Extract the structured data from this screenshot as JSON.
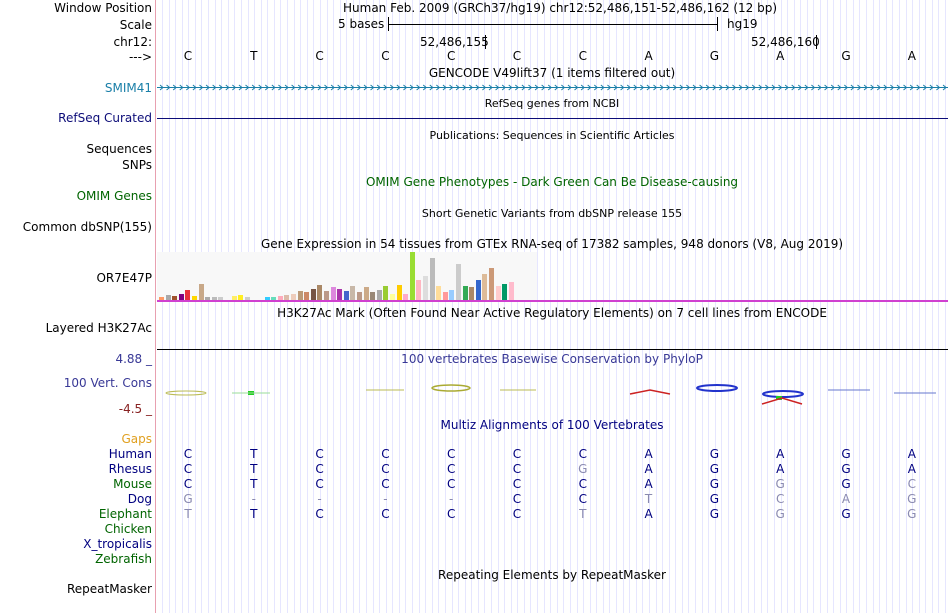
{
  "header": {
    "window_position_label": "Window Position",
    "window_position_value": "Human Feb. 2009 (GRCh37/hg19)   chr12:52,486,151-52,486,162 (12 bp)",
    "scale_label": "Scale",
    "scale_left": "5 bases",
    "scale_right": "hg19",
    "chrom_label": "chr12:",
    "coord1": "52,486,155",
    "coord2": "52,486,160",
    "strand_label": "--->"
  },
  "bases": [
    "C",
    "T",
    "C",
    "C",
    "C",
    "C",
    "C",
    "A",
    "G",
    "A",
    "G",
    "A"
  ],
  "tracks": {
    "gencode_title": "GENCODE V49lift37 (1 items filtered out)",
    "gencode_item": "SMIM41",
    "refseq_title": "RefSeq genes from NCBI",
    "refseq_label": "RefSeq Curated",
    "publications_title": "Publications: Sequences in Scientific Articles",
    "sequences_label": "Sequences",
    "snps_label": "SNPs",
    "omim_title": "OMIM Gene Phenotypes - Dark Green Can Be Disease-causing",
    "omim_label": "OMIM Genes",
    "dbsnp_title": "Short Genetic Variants from dbSNP release 155",
    "dbsnp_label": "Common dbSNP(155)",
    "gtex_title": "Gene Expression in 54 tissues from GTEx RNA-seq of 17382 samples, 948 donors (V8, Aug 2019)",
    "gtex_label": "OR7E47P",
    "h3k27ac_title": "H3K27Ac Mark (Often Found Near Active Regulatory Elements) on 7 cell lines from ENCODE",
    "h3k27ac_label": "Layered H3K27Ac",
    "phylop_title": "100 vertebrates Basewise Conservation by PhyloP",
    "phylop_label": "100 Vert. Cons",
    "phylop_max": "4.88 _",
    "phylop_min": "-4.5 _",
    "multiz_title": "Multiz Alignments of 100 Vertebrates",
    "gaps_label": "Gaps",
    "repeat_title": "Repeating Elements by RepeatMasker",
    "repeat_label": "RepeatMasker"
  },
  "gtex_levels": [
    3,
    5,
    4,
    6,
    10,
    4,
    16,
    3,
    3,
    3,
    0,
    4,
    5,
    3,
    0,
    0,
    3,
    3,
    4,
    5,
    6,
    9,
    8,
    11,
    15,
    9,
    13,
    11,
    9,
    14,
    8,
    13,
    8,
    10,
    14,
    6,
    15,
    6,
    48,
    20,
    24,
    42,
    14,
    8,
    10,
    36,
    14,
    13,
    20,
    26,
    32,
    14,
    16,
    18
  ],
  "gtex_colors": [
    "#ff9966",
    "#a9a9a9",
    "#a0522d",
    "#800080",
    "#e8303a",
    "#ffd700",
    "#c8a888",
    "#aaaaaa",
    "#bbbbbb",
    "#cccccc",
    "#dddddd",
    "#ffee66",
    "#ffee22",
    "#cccccc",
    "#dddddd",
    "#aaaaaa",
    "#33ccff",
    "#66ddbb",
    "#ffaabb",
    "#ddbbaa",
    "#eeccbb",
    "#bb9977",
    "#cc8866",
    "#775544",
    "#aa8866",
    "#bb9988",
    "#dd88dd",
    "#aa33aa",
    "#4466cc",
    "#c8b8a8",
    "#bb9988",
    "#ccaa88",
    "#998877",
    "#aaaaaa",
    "#99cc33",
    "#ffff99",
    "#ffcc00",
    "#ffaacc",
    "#99dd33",
    "#ffb6c1",
    "#dddddd",
    "#bbbbbb",
    "#ffdd99",
    "#ff9999",
    "#99ccff",
    "#cccccc",
    "#33aa55",
    "#aa8866",
    "#3366cc",
    "#ddbb99",
    "#cc9977",
    "#ffcccc",
    "#009966",
    "#ffbbcc"
  ],
  "multiz": [
    {
      "species": "Human",
      "color": "#000080",
      "bases": [
        "C",
        "T",
        "C",
        "C",
        "C",
        "C",
        "C",
        "A",
        "G",
        "A",
        "G",
        "A"
      ],
      "dim": [
        0,
        0,
        0,
        0,
        0,
        0,
        0,
        0,
        0,
        0,
        0,
        0
      ]
    },
    {
      "species": "Rhesus",
      "color": "#000080",
      "bases": [
        "C",
        "T",
        "C",
        "C",
        "C",
        "C",
        "G",
        "A",
        "G",
        "A",
        "G",
        "A"
      ],
      "dim": [
        0,
        0,
        0,
        0,
        0,
        0,
        1,
        0,
        0,
        0,
        0,
        0
      ]
    },
    {
      "species": "Mouse",
      "color": "#006400",
      "bases": [
        "C",
        "T",
        "C",
        "C",
        "C",
        "C",
        "C",
        "A",
        "G",
        "G",
        "G",
        "C"
      ],
      "dim": [
        0,
        0,
        0,
        0,
        0,
        0,
        0,
        0,
        0,
        1,
        0,
        1
      ]
    },
    {
      "species": "Dog",
      "color": "#000080",
      "bases": [
        "G",
        "-",
        "-",
        "-",
        "-",
        "C",
        "C",
        "T",
        "G",
        "C",
        "A",
        "G"
      ],
      "dim": [
        1,
        1,
        1,
        1,
        1,
        0,
        0,
        1,
        0,
        1,
        1,
        1
      ]
    },
    {
      "species": "Elephant",
      "color": "#006400",
      "bases": [
        "T",
        "T",
        "C",
        "C",
        "C",
        "C",
        "T",
        "A",
        "G",
        "G",
        "G",
        "G"
      ],
      "dim": [
        1,
        0,
        0,
        0,
        0,
        0,
        1,
        0,
        0,
        1,
        0,
        1
      ]
    },
    {
      "species": "Chicken",
      "color": "#006400",
      "bases": [
        "",
        "",
        "",
        "",
        "",
        "",
        "",
        "",
        "",
        "",
        "",
        ""
      ],
      "dim": [
        0,
        0,
        0,
        0,
        0,
        0,
        0,
        0,
        0,
        0,
        0,
        0
      ]
    },
    {
      "species": "X_tropicalis",
      "color": "#000080",
      "bases": [
        "",
        "",
        "",
        "",
        "",
        "",
        "",
        "",
        "",
        "",
        "",
        ""
      ],
      "dim": [
        0,
        0,
        0,
        0,
        0,
        0,
        0,
        0,
        0,
        0,
        0,
        0
      ]
    },
    {
      "species": "Zebrafish",
      "color": "#006400",
      "bases": [
        "",
        "",
        "",
        "",
        "",
        "",
        "",
        "",
        "",
        "",
        "",
        ""
      ],
      "dim": [
        0,
        0,
        0,
        0,
        0,
        0,
        0,
        0,
        0,
        0,
        0,
        0
      ]
    }
  ],
  "colors": {
    "gencode": "#1a7fa8",
    "refseq": "#0c0c78",
    "omim": "#006400",
    "phylop": "#383896",
    "phylop_min": "#882222",
    "gaps": "#e0a020",
    "bed_line": "#d040d0"
  }
}
